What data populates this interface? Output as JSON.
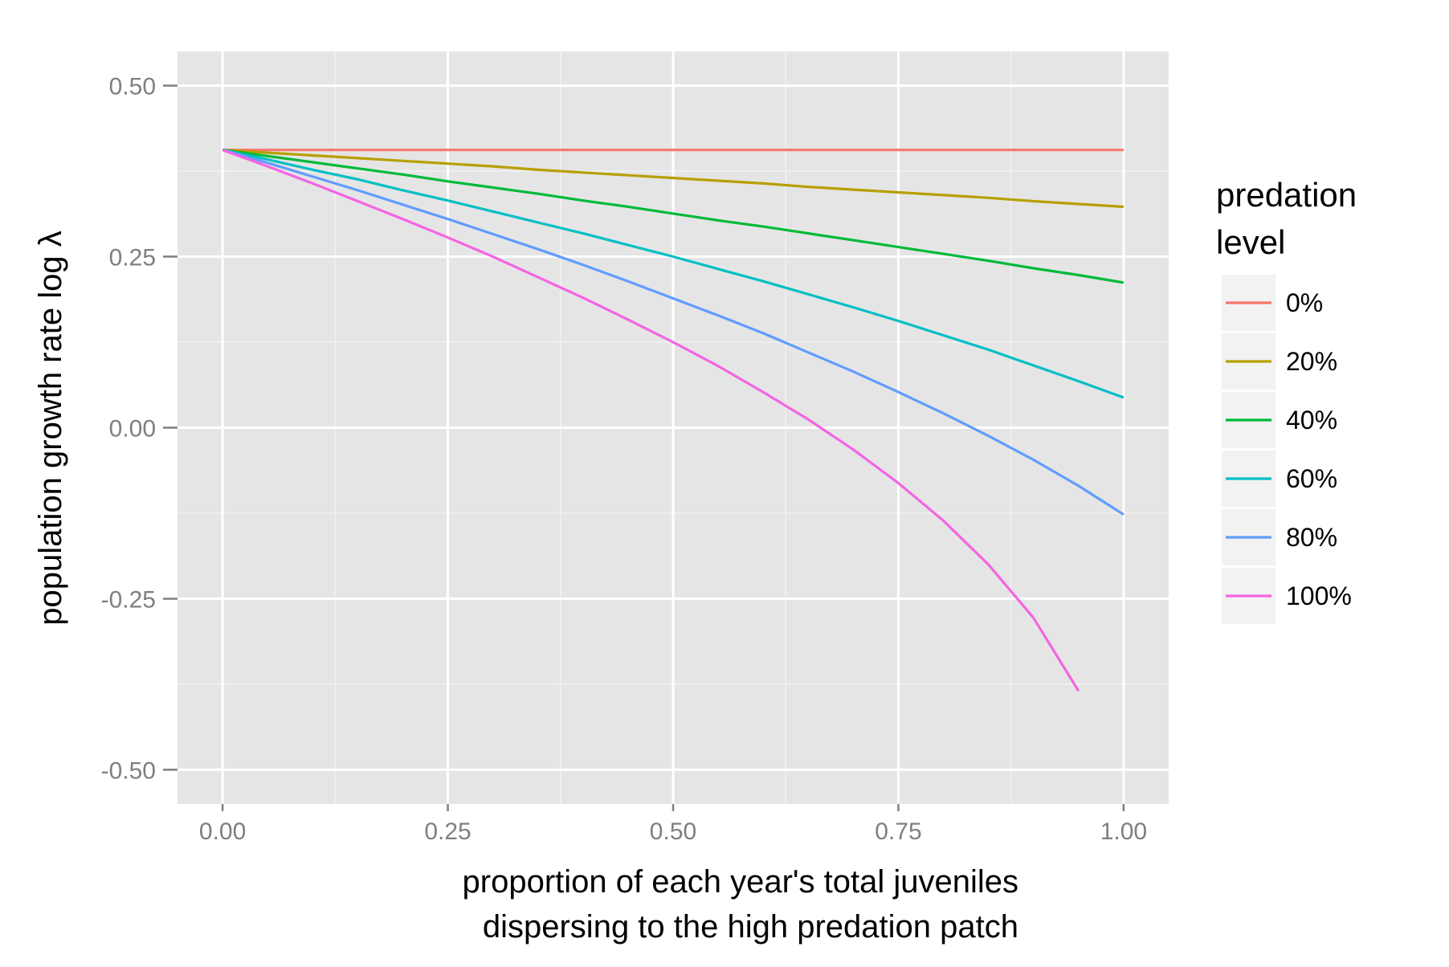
{
  "chart_data": {
    "type": "line",
    "xlabel_lines": [
      "proportion of each year's total juveniles",
      "dispersing to the high predation patch"
    ],
    "ylabel": "population growth rate log λ",
    "xlim": [
      -0.05,
      1.05
    ],
    "ylim": [
      -0.55,
      0.55
    ],
    "x_ticks": [
      0.0,
      0.25,
      0.5,
      0.75,
      1.0
    ],
    "x_tick_labels": [
      "0.00",
      "0.25",
      "0.50",
      "0.75",
      "1.00"
    ],
    "y_ticks": [
      0.5,
      0.25,
      0.0,
      -0.25,
      -0.5
    ],
    "y_tick_labels": [
      "0.50",
      "0.25",
      "0.00",
      "-0.25",
      "-0.50"
    ],
    "grid": true,
    "legend": {
      "title_lines": [
        "predation",
        "level"
      ],
      "position": "right"
    },
    "series": [
      {
        "name": "0%",
        "color": "#F8766D",
        "x": [
          0,
          0.05,
          0.1,
          0.15,
          0.2,
          0.25,
          0.3,
          0.35,
          0.4,
          0.45,
          0.5,
          0.55,
          0.6,
          0.65,
          0.7,
          0.75,
          0.8,
          0.85,
          0.9,
          0.95,
          1.0
        ],
        "y": [
          0.406,
          0.406,
          0.406,
          0.406,
          0.406,
          0.406,
          0.406,
          0.406,
          0.406,
          0.406,
          0.406,
          0.406,
          0.406,
          0.406,
          0.406,
          0.406,
          0.406,
          0.406,
          0.406,
          0.406,
          0.406
        ]
      },
      {
        "name": "20%",
        "color": "#B79F00",
        "x": [
          0,
          0.05,
          0.1,
          0.15,
          0.2,
          0.25,
          0.3,
          0.35,
          0.4,
          0.45,
          0.5,
          0.55,
          0.6,
          0.65,
          0.7,
          0.75,
          0.8,
          0.85,
          0.9,
          0.95,
          1.0
        ],
        "y": [
          0.406,
          0.402,
          0.398,
          0.394,
          0.39,
          0.386,
          0.382,
          0.377,
          0.373,
          0.369,
          0.365,
          0.361,
          0.357,
          0.352,
          0.348,
          0.344,
          0.34,
          0.336,
          0.331,
          0.327,
          0.323
        ]
      },
      {
        "name": "40%",
        "color": "#00BA38",
        "x": [
          0,
          0.05,
          0.1,
          0.15,
          0.2,
          0.25,
          0.3,
          0.35,
          0.4,
          0.45,
          0.5,
          0.55,
          0.6,
          0.65,
          0.7,
          0.75,
          0.8,
          0.85,
          0.9,
          0.95,
          1.0
        ],
        "y": [
          0.406,
          0.397,
          0.388,
          0.379,
          0.37,
          0.36,
          0.351,
          0.342,
          0.332,
          0.323,
          0.313,
          0.303,
          0.294,
          0.284,
          0.274,
          0.264,
          0.254,
          0.244,
          0.233,
          0.223,
          0.212
        ]
      },
      {
        "name": "60%",
        "color": "#00BFC4",
        "x": [
          0,
          0.05,
          0.1,
          0.15,
          0.2,
          0.25,
          0.3,
          0.35,
          0.4,
          0.45,
          0.5,
          0.55,
          0.6,
          0.65,
          0.7,
          0.75,
          0.8,
          0.85,
          0.9,
          0.95,
          1.0
        ],
        "y": [
          0.406,
          0.392,
          0.377,
          0.363,
          0.347,
          0.332,
          0.316,
          0.3,
          0.284,
          0.267,
          0.25,
          0.232,
          0.214,
          0.195,
          0.176,
          0.156,
          0.135,
          0.114,
          0.091,
          0.068,
          0.044
        ]
      },
      {
        "name": "80%",
        "color": "#619CFF",
        "x": [
          0,
          0.05,
          0.1,
          0.15,
          0.2,
          0.25,
          0.3,
          0.35,
          0.4,
          0.45,
          0.5,
          0.55,
          0.6,
          0.65,
          0.7,
          0.75,
          0.8,
          0.85,
          0.9,
          0.95,
          1.0
        ],
        "y": [
          0.406,
          0.387,
          0.367,
          0.347,
          0.326,
          0.305,
          0.283,
          0.261,
          0.238,
          0.214,
          0.189,
          0.164,
          0.138,
          0.11,
          0.082,
          0.052,
          0.021,
          -0.012,
          -0.047,
          -0.085,
          -0.127
        ]
      },
      {
        "name": "100%",
        "color": "#F564E3",
        "x": [
          0,
          0.05,
          0.1,
          0.15,
          0.2,
          0.25,
          0.3,
          0.35,
          0.4,
          0.45,
          0.5,
          0.55,
          0.6,
          0.65,
          0.7,
          0.75,
          0.8,
          0.85,
          0.9,
          0.95
        ],
        "y": [
          0.406,
          0.382,
          0.357,
          0.331,
          0.305,
          0.278,
          0.25,
          0.22,
          0.19,
          0.158,
          0.125,
          0.09,
          0.052,
          0.012,
          -0.032,
          -0.081,
          -0.136,
          -0.2,
          -0.278,
          -0.385
        ]
      }
    ]
  }
}
